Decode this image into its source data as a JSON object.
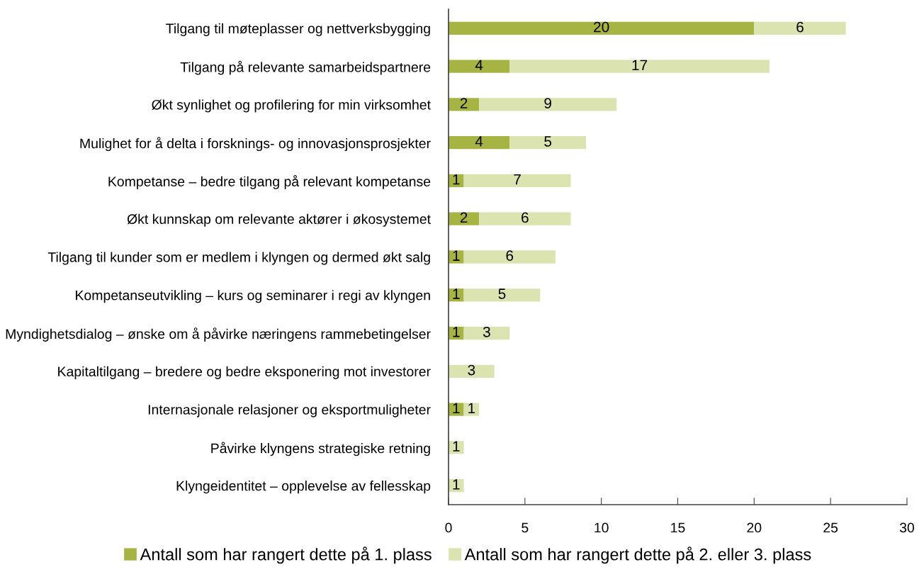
{
  "chart_data": {
    "type": "bar",
    "orientation": "horizontal",
    "stacked": true,
    "categories": [
      "Tilgang til møteplasser og nettverksbygging",
      "Tilgang på relevante samarbeidspartnere",
      "Økt synlighet og profilering for min virksomhet",
      "Mulighet for å delta i forsknings- og innovasjonsprosjekter",
      "Kompetanse – bedre tilgang på relevant kompetanse",
      "Økt kunnskap om relevante aktører i økosystemet",
      "Tilgang til kunder som er medlem i klyngen og dermed økt salg",
      "Kompetanseutvikling – kurs og seminarer i regi av klyngen",
      "Myndighetsdialog – ønske om å påvirke næringens rammebetingelser",
      "Kapitaltilgang – bredere og bedre eksponering mot investorer",
      "Internasjonale relasjoner og eksportmuligheter",
      "Påvirke klyngens strategiske retning",
      "Klyngeidentitet – opplevelse av fellesskap"
    ],
    "series": [
      {
        "name": "Antall som har rangert dette på 1. plass",
        "color": "#a6b443",
        "values": [
          20,
          4,
          2,
          4,
          1,
          2,
          1,
          1,
          1,
          0,
          1,
          0,
          0
        ],
        "value_labels": [
          "20",
          "4",
          "2",
          "4",
          "1",
          "2",
          "1",
          "1",
          "1",
          null,
          "1",
          null,
          null
        ]
      },
      {
        "name": "Antall som har rangert dette på 2. eller 3. plass",
        "color": "#dbe3b0",
        "values": [
          6,
          17,
          9,
          5,
          7,
          6,
          6,
          5,
          3,
          3,
          1,
          1,
          1
        ],
        "value_labels": [
          "6",
          "17",
          "9",
          "5",
          "7",
          "6",
          "6",
          "5",
          "3",
          "3",
          "1",
          "1",
          "1"
        ]
      }
    ],
    "xlim": [
      0,
      30
    ],
    "xticks": [
      0,
      5,
      10,
      15,
      20,
      25,
      30
    ],
    "grid": false,
    "legend": "bottom"
  }
}
